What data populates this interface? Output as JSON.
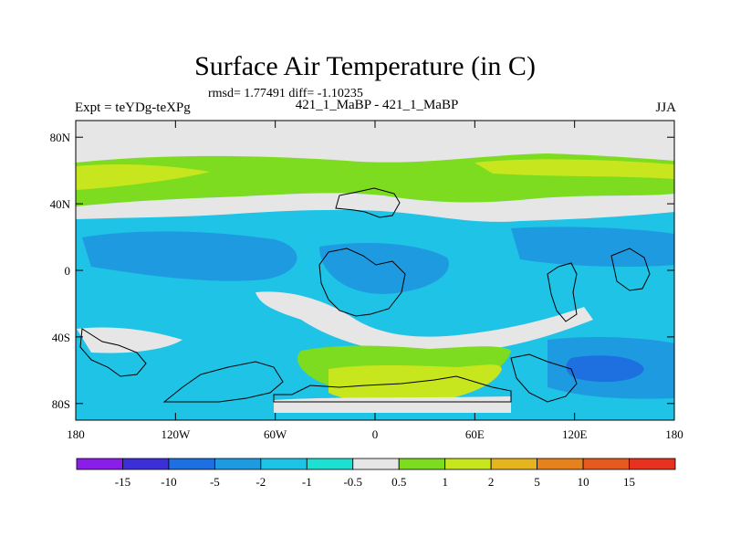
{
  "header": {
    "title": "Surface Air Temperature (in C)",
    "stats": "rmsd= 1.77491 diff= -1.10235",
    "left_label": "Expt = teYDg-teXPg",
    "center_label": "421_1_MaBP - 421_1_MaBP",
    "right_label": "JJA"
  },
  "map": {
    "y_ticks": [
      "80N",
      "40N",
      "0",
      "40S",
      "80S"
    ],
    "x_ticks": [
      "180",
      "120W",
      "60W",
      "0",
      "60E",
      "120E",
      "180"
    ]
  },
  "colorbar": {
    "labels": [
      "-15",
      "-10",
      "-5",
      "-2",
      "-1",
      "-0.5",
      "0.5",
      "1",
      "2",
      "5",
      "10",
      "15"
    ],
    "colors": [
      "#8a1ee8",
      "#3c2fd8",
      "#1e6fe0",
      "#1e9ae0",
      "#1ec3e6",
      "#1ee0d2",
      "#e6e6e6",
      "#7ddc1f",
      "#c8e61e",
      "#e6b41e",
      "#e6821e",
      "#e65a1e",
      "#e6321e"
    ]
  }
}
